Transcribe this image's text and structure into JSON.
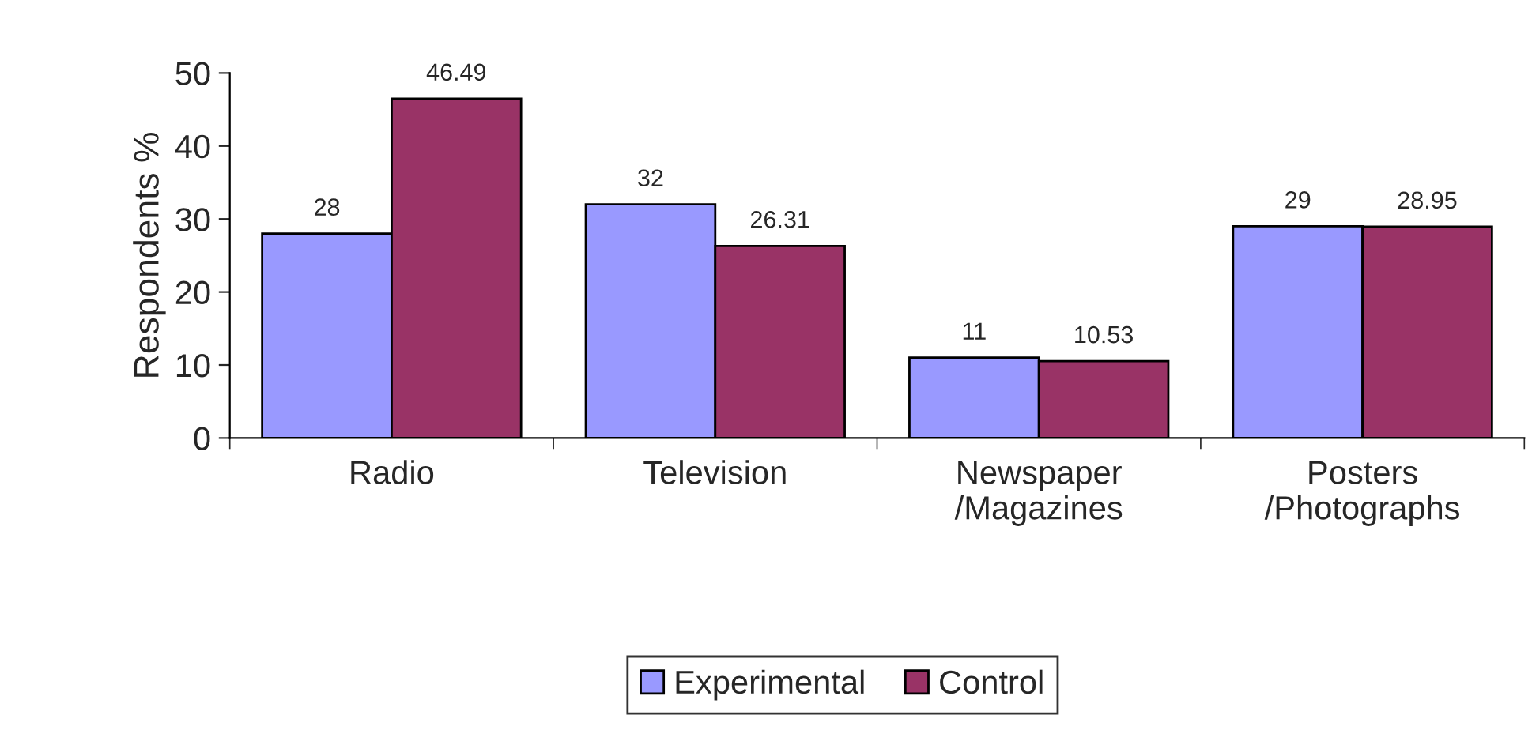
{
  "chart_data": {
    "type": "bar",
    "ylabel": "Respondents %",
    "categories": [
      "Radio",
      "Television",
      "Newspaper\n/Magazines",
      "Posters\n/Photographs"
    ],
    "series": [
      {
        "name": "Experimental",
        "color": "#9999ff",
        "values": [
          28,
          32,
          11,
          29
        ],
        "value_labels": [
          "28",
          "32",
          "11",
          "29"
        ]
      },
      {
        "name": "Control",
        "color": "#993366",
        "values": [
          46.49,
          26.31,
          10.53,
          28.95
        ],
        "value_labels": [
          "46.49",
          "26.31",
          "10.53",
          "28.95"
        ]
      }
    ],
    "ylim": [
      0,
      50
    ],
    "yticks": [
      0,
      10,
      20,
      30,
      40,
      50
    ],
    "grid": false,
    "legend": "bottom"
  }
}
